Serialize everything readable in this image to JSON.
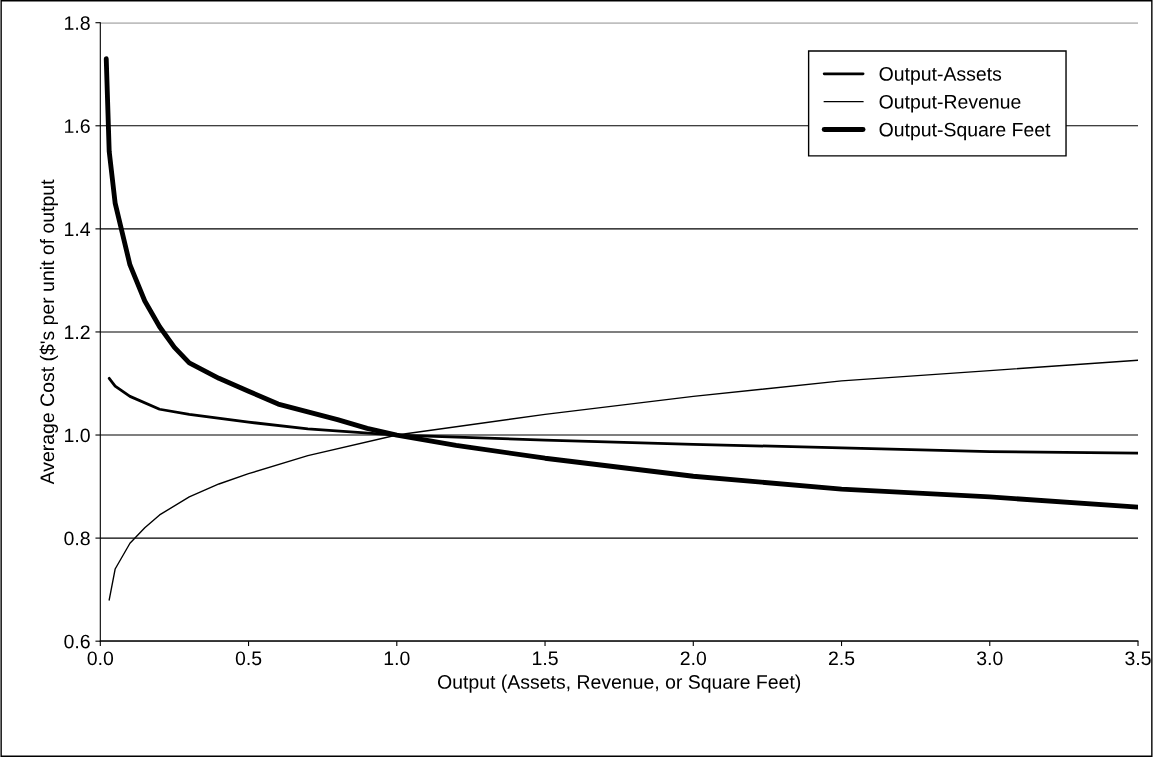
{
  "chart_data": {
    "type": "line",
    "xlabel": "Output (Assets, Revenue, or Square Feet)",
    "ylabel": "Average Cost ($'s per unit of output",
    "xlim": [
      0,
      3.5
    ],
    "xticks": [
      {
        "value": 0,
        "label": "0.0"
      },
      0.5,
      {
        "value": 1,
        "label": "1.0"
      },
      1.5,
      {
        "value": 2,
        "label": "2.0"
      },
      2.5,
      {
        "value": 3,
        "label": "3.0"
      },
      3.5
    ],
    "ylim": [
      0.6,
      1.8
    ],
    "yticks": [
      0.6,
      0.8,
      {
        "value": 1,
        "label": "1.0"
      },
      1.2,
      1.4,
      1.6,
      1.8
    ],
    "grid": "y",
    "legend": "top right",
    "marker": "none",
    "line_style": "solid",
    "series": [
      {
        "name": "Output-Assets",
        "color": "#000000",
        "x": [
          0.03,
          0.05,
          0.1,
          0.2,
          0.3,
          0.5,
          0.7,
          1.0,
          1.5,
          2.0,
          2.5,
          3.0,
          3.5
        ],
        "values": [
          1.11,
          1.095,
          1.075,
          1.05,
          1.04,
          1.025,
          1.012,
          1.0,
          0.99,
          0.982,
          0.975,
          0.968,
          0.965
        ]
      },
      {
        "name": "Output-Revenue",
        "color": "#000000",
        "x": [
          0.03,
          0.05,
          0.1,
          0.15,
          0.2,
          0.3,
          0.4,
          0.5,
          0.7,
          1.0,
          1.5,
          2.0,
          2.5,
          3.0,
          3.5
        ],
        "values": [
          0.68,
          0.74,
          0.79,
          0.82,
          0.845,
          0.88,
          0.905,
          0.925,
          0.96,
          1.0,
          1.04,
          1.075,
          1.105,
          1.125,
          1.145
        ]
      },
      {
        "name": "Output-Square Feet",
        "color": "#000000",
        "x": [
          0.02,
          0.03,
          0.05,
          0.1,
          0.15,
          0.2,
          0.25,
          0.3,
          0.4,
          0.5,
          0.6,
          0.7,
          0.8,
          0.9,
          1.0,
          1.2,
          1.5,
          2.0,
          2.5,
          3.0,
          3.5
        ],
        "values": [
          1.73,
          1.55,
          1.45,
          1.33,
          1.26,
          1.21,
          1.17,
          1.14,
          1.11,
          1.085,
          1.06,
          1.045,
          1.03,
          1.013,
          1.0,
          0.98,
          0.955,
          0.92,
          0.895,
          0.88,
          0.86
        ]
      }
    ]
  }
}
